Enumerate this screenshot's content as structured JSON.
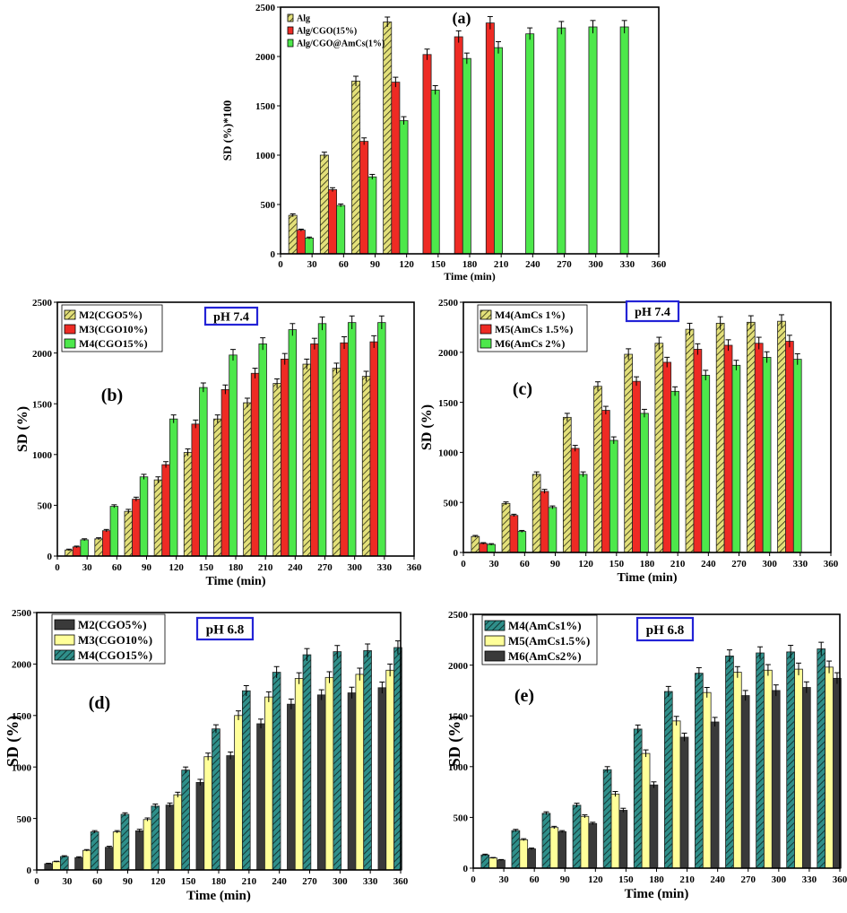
{
  "colors": {
    "hatch_yellow": "#e3e07a",
    "red": "#ee2b24",
    "green": "#4de84b",
    "gray": "#3a3a3a",
    "light_yellow": "#ffff99",
    "teal_hatch": "#2f8f8a",
    "ph_box": "#2323d6"
  },
  "chart_data": [
    {
      "id": "a",
      "type": "bar",
      "label": "(a)",
      "ph": "",
      "ylabel": "SD (%)*100",
      "xlabel": "Time (min)",
      "xlim": [
        0,
        360
      ],
      "ylim": [
        0,
        2500
      ],
      "xticks": [
        0,
        30,
        60,
        90,
        120,
        150,
        180,
        210,
        240,
        270,
        300,
        330,
        360
      ],
      "yticks": [
        0,
        500,
        1000,
        1500,
        2000,
        2500
      ],
      "series": [
        {
          "name": "Alg",
          "style": "hatch_yellow",
          "x": [
            30,
            60,
            90,
            120
          ],
          "values": [
            390,
            1000,
            1750,
            2350
          ],
          "err": [
            15,
            30,
            50,
            50
          ]
        },
        {
          "name": "Alg/CGO(15%)",
          "style": "red",
          "x": [
            30,
            60,
            90,
            120,
            150,
            180,
            210
          ],
          "values": [
            240,
            650,
            1140,
            1740,
            2020,
            2200,
            2340
          ],
          "err": [
            10,
            20,
            35,
            50,
            55,
            60,
            65
          ]
        },
        {
          "name": "Alg/CGO@AmCs(1%)",
          "style": "green",
          "x": [
            30,
            60,
            90,
            120,
            150,
            180,
            210,
            240,
            270,
            300,
            330
          ],
          "values": [
            160,
            490,
            780,
            1350,
            1660,
            1980,
            2090,
            2230,
            2290,
            2300,
            2300
          ],
          "err": [
            10,
            15,
            25,
            40,
            45,
            55,
            60,
            60,
            65,
            65,
            65
          ]
        }
      ]
    },
    {
      "id": "b",
      "type": "bar",
      "label": "(b)",
      "ph": "pH 7.4",
      "ylabel": "SD (%)",
      "xlabel": "Time (min)",
      "xlim": [
        0,
        360
      ],
      "ylim": [
        0,
        2500
      ],
      "xticks": [
        0,
        30,
        60,
        90,
        120,
        150,
        180,
        210,
        240,
        270,
        300,
        330,
        360
      ],
      "yticks": [
        0,
        500,
        1000,
        1500,
        2000,
        2500
      ],
      "series": [
        {
          "name": "M2(CGO5%)",
          "style": "hatch_yellow",
          "x": [
            30,
            60,
            90,
            120,
            150,
            180,
            210,
            240,
            270,
            300,
            330
          ],
          "values": [
            60,
            170,
            440,
            750,
            1020,
            1350,
            1510,
            1700,
            1890,
            1850,
            1770
          ],
          "err": [
            8,
            10,
            20,
            30,
            35,
            40,
            45,
            45,
            50,
            50,
            50
          ]
        },
        {
          "name": "M3(CGO10%)",
          "style": "red",
          "x": [
            30,
            60,
            90,
            120,
            150,
            180,
            210,
            240,
            270,
            300,
            330
          ],
          "values": [
            90,
            250,
            560,
            900,
            1300,
            1640,
            1800,
            1940,
            2090,
            2100,
            2110
          ],
          "err": [
            8,
            12,
            20,
            30,
            40,
            45,
            50,
            55,
            55,
            60,
            60
          ]
        },
        {
          "name": "M4(CGO15%)",
          "style": "green",
          "x": [
            30,
            60,
            90,
            120,
            150,
            180,
            210,
            240,
            270,
            300,
            330
          ],
          "values": [
            160,
            490,
            780,
            1350,
            1660,
            1980,
            2090,
            2230,
            2290,
            2300,
            2300
          ],
          "err": [
            10,
            15,
            25,
            40,
            45,
            55,
            60,
            60,
            65,
            65,
            65
          ]
        }
      ]
    },
    {
      "id": "c",
      "type": "bar",
      "label": "(c)",
      "ph": "pH 7.4",
      "ylabel": "SD (%)",
      "xlabel": "Time (min)",
      "xlim": [
        0,
        360
      ],
      "ylim": [
        0,
        2500
      ],
      "xticks": [
        0,
        30,
        60,
        90,
        120,
        150,
        180,
        210,
        240,
        270,
        300,
        330,
        360
      ],
      "yticks": [
        0,
        500,
        1000,
        1500,
        2000,
        2500
      ],
      "series": [
        {
          "name": "M4(AmCs 1%)",
          "style": "hatch_yellow",
          "x": [
            30,
            60,
            90,
            120,
            150,
            180,
            210,
            240,
            270,
            300,
            330
          ],
          "values": [
            160,
            490,
            780,
            1350,
            1660,
            1980,
            2090,
            2230,
            2290,
            2300,
            2310
          ],
          "err": [
            10,
            15,
            25,
            40,
            45,
            55,
            60,
            60,
            65,
            65,
            65
          ]
        },
        {
          "name": "M5(AmCs 1.5%)",
          "style": "red",
          "x": [
            30,
            60,
            90,
            120,
            150,
            180,
            210,
            240,
            270,
            300,
            330
          ],
          "values": [
            90,
            370,
            610,
            1040,
            1420,
            1710,
            1900,
            2030,
            2070,
            2090,
            2110
          ],
          "err": [
            8,
            12,
            20,
            30,
            40,
            45,
            50,
            55,
            55,
            60,
            60
          ]
        },
        {
          "name": "M6(AmCs 2%)",
          "style": "green",
          "x": [
            30,
            60,
            90,
            120,
            150,
            180,
            210,
            240,
            270,
            300,
            330
          ],
          "values": [
            80,
            210,
            450,
            780,
            1120,
            1390,
            1610,
            1770,
            1870,
            1950,
            1930
          ],
          "err": [
            8,
            10,
            15,
            25,
            35,
            40,
            45,
            50,
            50,
            55,
            55
          ]
        }
      ]
    },
    {
      "id": "d",
      "type": "bar",
      "label": "(d)",
      "ph": "pH 6.8",
      "ylabel": "SD (%)",
      "xlabel": "Time (min)",
      "xlim": [
        0,
        360
      ],
      "ylim": [
        0,
        2500
      ],
      "xticks": [
        0,
        30,
        60,
        90,
        120,
        150,
        180,
        210,
        240,
        270,
        300,
        330,
        360
      ],
      "yticks": [
        0,
        500,
        1000,
        1500,
        2000,
        2500
      ],
      "series": [
        {
          "name": "M2(CGO5%)",
          "style": "gray",
          "x": [
            30,
            60,
            90,
            120,
            150,
            180,
            210,
            240,
            270,
            300,
            330,
            360
          ],
          "values": [
            60,
            120,
            220,
            380,
            630,
            850,
            1110,
            1420,
            1610,
            1700,
            1720,
            1770
          ],
          "err": [
            5,
            8,
            10,
            15,
            20,
            30,
            35,
            45,
            50,
            50,
            55,
            55
          ]
        },
        {
          "name": "M3(CGO10%)",
          "style": "light_yellow",
          "x": [
            30,
            60,
            90,
            120,
            150,
            180,
            210,
            240,
            270,
            300,
            330,
            360
          ],
          "values": [
            80,
            190,
            370,
            490,
            730,
            1100,
            1500,
            1680,
            1860,
            1870,
            1900,
            1940
          ],
          "err": [
            5,
            8,
            12,
            15,
            25,
            35,
            45,
            50,
            55,
            55,
            60,
            60
          ]
        },
        {
          "name": "M4(CGO15%)",
          "style": "teal_hatch",
          "x": [
            30,
            60,
            90,
            120,
            150,
            180,
            210,
            240,
            270,
            300,
            330,
            360
          ],
          "values": [
            130,
            370,
            540,
            620,
            970,
            1370,
            1740,
            1920,
            2090,
            2120,
            2130,
            2160
          ],
          "err": [
            8,
            12,
            15,
            20,
            30,
            40,
            50,
            55,
            60,
            60,
            65,
            65
          ]
        }
      ]
    },
    {
      "id": "e",
      "type": "bar",
      "label": "(e)",
      "ph": "pH 6.8",
      "ylabel": "SD (%)",
      "xlabel": "Time (min)",
      "xlim": [
        0,
        360
      ],
      "ylim": [
        0,
        2500
      ],
      "xticks": [
        0,
        30,
        60,
        90,
        120,
        150,
        180,
        210,
        240,
        270,
        300,
        330,
        360
      ],
      "yticks": [
        0,
        500,
        1000,
        1500,
        2000,
        2500
      ],
      "series": [
        {
          "name": "M4(AmCs1%)",
          "style": "teal_hatch",
          "x": [
            30,
            60,
            90,
            120,
            150,
            180,
            210,
            240,
            270,
            300,
            330,
            360
          ],
          "values": [
            130,
            370,
            540,
            620,
            970,
            1370,
            1740,
            1920,
            2090,
            2120,
            2130,
            2160
          ],
          "err": [
            8,
            12,
            15,
            20,
            30,
            40,
            50,
            55,
            60,
            60,
            65,
            65
          ]
        },
        {
          "name": "M5(AmCs1.5%)",
          "style": "light_yellow",
          "x": [
            30,
            60,
            90,
            120,
            150,
            180,
            210,
            240,
            270,
            300,
            330,
            360
          ],
          "values": [
            100,
            280,
            400,
            510,
            730,
            1130,
            1450,
            1730,
            1930,
            1950,
            1960,
            1980
          ],
          "err": [
            5,
            10,
            12,
            15,
            25,
            35,
            45,
            50,
            55,
            55,
            60,
            60
          ]
        },
        {
          "name": "M6(AmCs2%)",
          "style": "gray",
          "x": [
            30,
            60,
            90,
            120,
            150,
            180,
            210,
            240,
            270,
            300,
            330,
            360
          ],
          "values": [
            80,
            190,
            360,
            440,
            570,
            820,
            1290,
            1440,
            1700,
            1750,
            1780,
            1870
          ],
          "err": [
            5,
            8,
            10,
            12,
            20,
            30,
            40,
            45,
            50,
            55,
            55,
            55
          ]
        }
      ]
    }
  ]
}
